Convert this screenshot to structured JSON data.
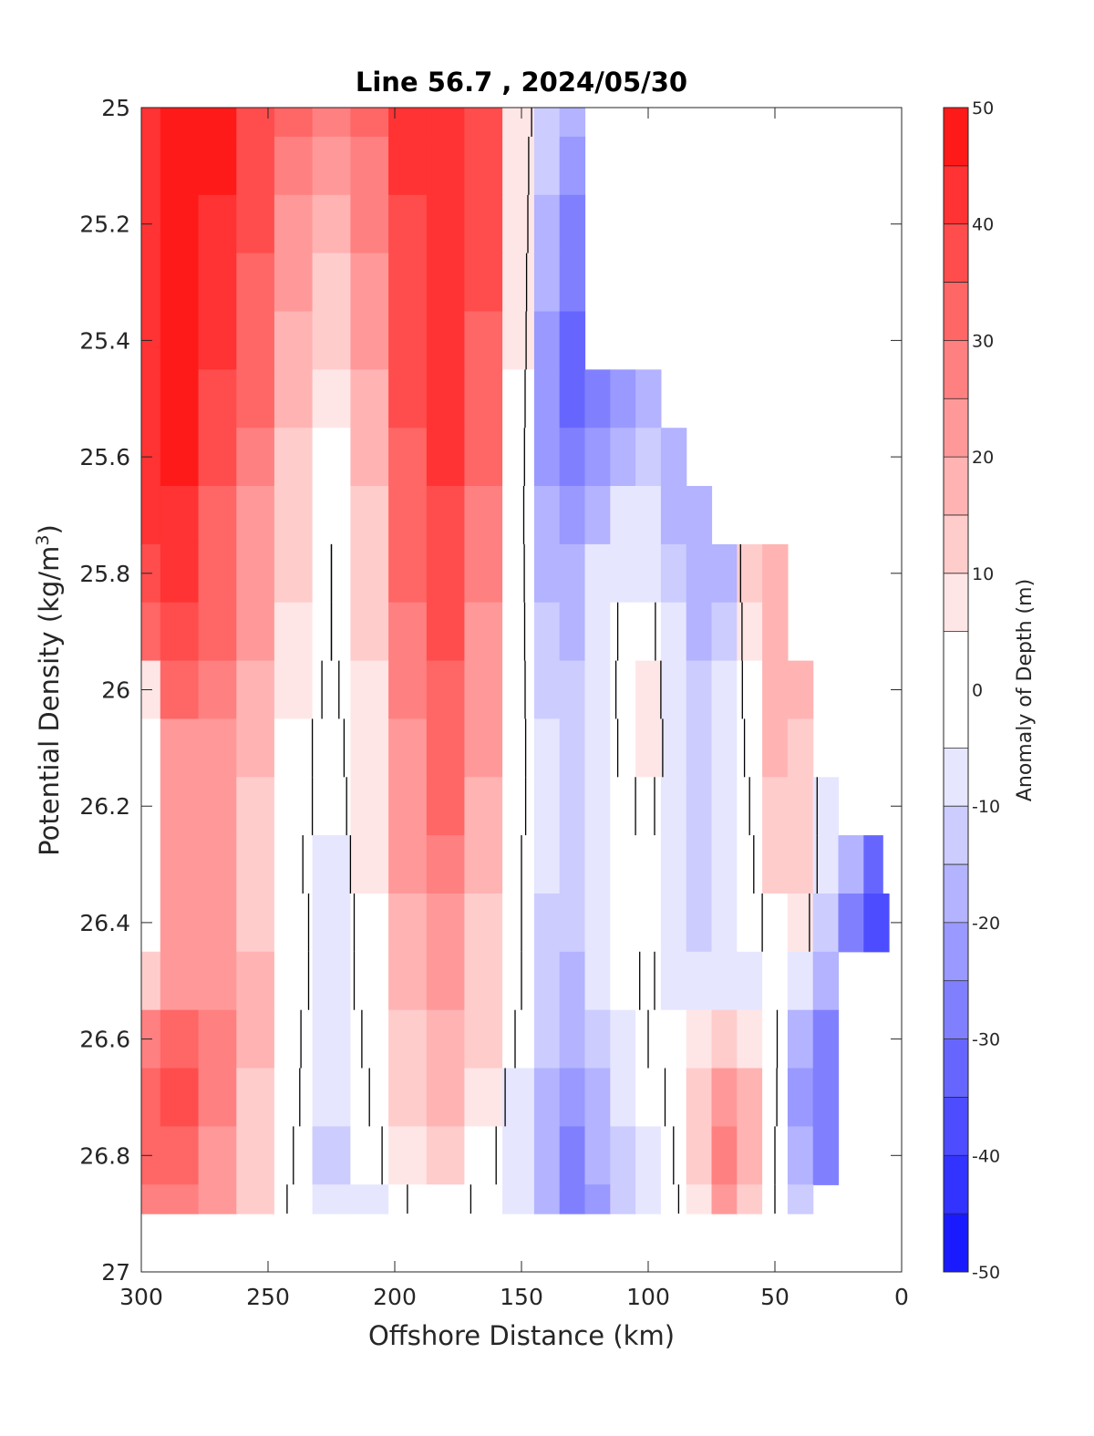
{
  "chart_data": {
    "type": "heatmap",
    "title": "Line 56.7 , 2024/05/30",
    "xlabel": "Offshore Distance (km)",
    "ylabel_main": "Potential Density (kg/m",
    "ylabel_sup": "3",
    "ylabel_close": ")",
    "xlim": [
      300,
      0
    ],
    "ylim": [
      25,
      27
    ],
    "x_reversed": true,
    "y_reversed": true,
    "xticks": [
      300,
      250,
      200,
      150,
      100,
      50,
      0
    ],
    "xtick_labels": [
      "300",
      "250",
      "200",
      "150",
      "100",
      "50",
      "0"
    ],
    "yticks": [
      25,
      25.2,
      25.4,
      25.6,
      25.8,
      26,
      26.2,
      26.4,
      26.6,
      26.8,
      27
    ],
    "ytick_labels": [
      "25",
      "25.2",
      "25.4",
      "25.6",
      "25.8",
      "26",
      "26.2",
      "26.4",
      "26.6",
      "26.8",
      "27"
    ],
    "colorbar": {
      "label": "Anomaly of Depth (m)",
      "range": [
        -50,
        50
      ],
      "ticks": [
        50,
        40,
        30,
        20,
        10,
        0,
        -10,
        -20,
        -30,
        -40,
        -50
      ],
      "tick_labels": [
        "50",
        "40",
        "30",
        "20",
        "10",
        "0",
        "-10",
        "-20",
        "-30",
        "-40",
        "-50"
      ],
      "levels": [
        -50,
        -45,
        -40,
        -35,
        -30,
        -25,
        -20,
        -15,
        -10,
        -5,
        5,
        10,
        15,
        20,
        25,
        30,
        35,
        40,
        45,
        50
      ],
      "colors": [
        "#0000ff",
        "#1a1aff",
        "#3333ff",
        "#4d4dff",
        "#6666ff",
        "#8080ff",
        "#9999ff",
        "#b3b3ff",
        "#ccccff",
        "#e6e6ff",
        "#ffffff",
        "#ffe6e6",
        "#ffcccc",
        "#ffb3b3",
        "#ff9999",
        "#ff8080",
        "#ff6666",
        "#ff4d4d",
        "#ff3333",
        "#ff1a1a",
        "#ff0000"
      ]
    },
    "x_grid": [
      300,
      285,
      270,
      255,
      240,
      225,
      210,
      195,
      180,
      165,
      150,
      140,
      130,
      120,
      110,
      100,
      90,
      80,
      70,
      60,
      50,
      40,
      30,
      20,
      10,
      5
    ],
    "y_grid": [
      25.0,
      25.1,
      25.2,
      25.3,
      25.4,
      25.5,
      25.6,
      25.7,
      25.8,
      25.9,
      26.0,
      26.1,
      26.2,
      26.3,
      26.4,
      26.5,
      26.6,
      26.7,
      26.8,
      26.9
    ],
    "anomaly_m": [
      [
        42,
        48,
        45,
        38,
        30,
        26,
        30,
        40,
        42,
        35,
        8,
        -12,
        -18,
        null,
        null,
        null,
        null,
        null,
        null,
        null,
        null,
        null,
        null,
        null,
        null,
        null
      ],
      [
        42,
        48,
        45,
        38,
        28,
        22,
        28,
        40,
        44,
        36,
        6,
        -15,
        -22,
        null,
        null,
        null,
        null,
        null,
        null,
        null,
        null,
        null,
        null,
        null,
        null,
        null
      ],
      [
        42,
        48,
        44,
        36,
        24,
        16,
        26,
        38,
        43,
        36,
        6,
        -18,
        -26,
        null,
        null,
        null,
        null,
        null,
        null,
        null,
        null,
        null,
        null,
        null,
        null,
        null
      ],
      [
        42,
        46,
        42,
        34,
        22,
        14,
        24,
        38,
        42,
        35,
        5,
        -20,
        -30,
        null,
        null,
        null,
        null,
        null,
        null,
        null,
        null,
        null,
        null,
        null,
        null,
        null
      ],
      [
        40,
        45,
        40,
        32,
        18,
        10,
        20,
        36,
        42,
        34,
        5,
        -22,
        -35,
        null,
        null,
        null,
        null,
        null,
        null,
        null,
        null,
        null,
        null,
        null,
        null,
        null
      ],
      [
        40,
        45,
        38,
        30,
        16,
        8,
        18,
        35,
        41,
        32,
        4,
        -24,
        -35,
        -28,
        -22,
        -18,
        null,
        null,
        null,
        null,
        null,
        null,
        null,
        null,
        null,
        null
      ],
      [
        42,
        45,
        36,
        28,
        14,
        4,
        16,
        34,
        40,
        30,
        3,
        -22,
        -30,
        -24,
        -16,
        -14,
        -20,
        null,
        null,
        null,
        null,
        null,
        null,
        null,
        null,
        null
      ],
      [
        40,
        44,
        34,
        24,
        12,
        2,
        14,
        32,
        38,
        28,
        2,
        -20,
        -24,
        -16,
        -10,
        -10,
        -18,
        -20,
        null,
        null,
        null,
        null,
        null,
        null,
        null,
        null
      ],
      [
        38,
        40,
        32,
        22,
        10,
        0,
        12,
        30,
        36,
        26,
        2,
        -16,
        -20,
        -10,
        -6,
        -6,
        -14,
        -20,
        -18,
        10,
        16,
        null,
        null,
        null,
        null,
        null
      ],
      [
        30,
        36,
        30,
        20,
        8,
        0,
        10,
        28,
        35,
        24,
        2,
        -14,
        -16,
        -8,
        2,
        4,
        -10,
        -16,
        -14,
        6,
        18,
        null,
        null,
        null,
        null,
        null
      ],
      [
        6,
        30,
        28,
        18,
        6,
        -2,
        8,
        26,
        34,
        22,
        2,
        -12,
        -14,
        -8,
        3,
        8,
        -8,
        -14,
        -10,
        4,
        18,
        16,
        null,
        null,
        null,
        null
      ],
      [
        4,
        24,
        24,
        16,
        4,
        -4,
        8,
        24,
        32,
        20,
        2,
        -10,
        -12,
        -8,
        2,
        8,
        -6,
        -12,
        -8,
        2,
        16,
        14,
        null,
        null,
        null,
        null
      ],
      [
        2,
        22,
        22,
        14,
        4,
        -4,
        6,
        22,
        30,
        18,
        2,
        -10,
        -12,
        -8,
        -2,
        2,
        -6,
        -12,
        -10,
        0,
        14,
        12,
        -6,
        null,
        null,
        null
      ],
      [
        2,
        20,
        20,
        14,
        2,
        -6,
        6,
        20,
        26,
        16,
        0,
        -10,
        -14,
        -8,
        -4,
        -2,
        -6,
        -12,
        -10,
        -2,
        10,
        12,
        -6,
        -20,
        -35,
        null
      ],
      [
        4,
        22,
        22,
        14,
        4,
        -6,
        4,
        18,
        22,
        14,
        0,
        -12,
        -14,
        -8,
        -4,
        0,
        -8,
        -14,
        -10,
        -4,
        4,
        8,
        -14,
        -26,
        -40,
        -40
      ],
      [
        12,
        24,
        24,
        16,
        4,
        -6,
        4,
        16,
        20,
        12,
        0,
        -12,
        -16,
        -10,
        -4,
        2,
        -6,
        -10,
        -8,
        -6,
        0,
        -6,
        -18,
        null,
        null,
        null
      ],
      [
        26,
        32,
        26,
        16,
        2,
        -8,
        2,
        14,
        18,
        10,
        -2,
        -14,
        -18,
        -12,
        -6,
        0,
        4,
        8,
        10,
        8,
        2,
        -20,
        -28,
        null,
        null,
        null
      ],
      [
        34,
        36,
        28,
        14,
        2,
        -10,
        0,
        12,
        16,
        8,
        -6,
        -16,
        -22,
        -16,
        -8,
        -4,
        2,
        14,
        24,
        16,
        2,
        -24,
        -30,
        null,
        null,
        null
      ],
      [
        32,
        32,
        24,
        12,
        0,
        -12,
        -4,
        8,
        12,
        4,
        -8,
        -18,
        -26,
        -20,
        -12,
        -8,
        0,
        12,
        26,
        18,
        0,
        -20,
        -26,
        null,
        null,
        null
      ],
      [
        28,
        26,
        20,
        10,
        -2,
        -10,
        -6,
        0,
        4,
        -2,
        -8,
        -16,
        -26,
        -22,
        -14,
        -10,
        -2,
        8,
        20,
        14,
        0,
        -14,
        null,
        null,
        null,
        null
      ]
    ],
    "zero_contour_note": ""
  }
}
